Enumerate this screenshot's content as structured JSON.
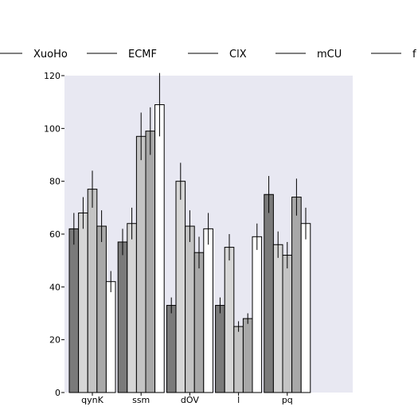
{
  "chart_data": {
    "type": "bar",
    "categories": [
      "qynK",
      "ssm",
      "dOV",
      "l",
      "pq"
    ],
    "series": [
      {
        "name": "XuoHo",
        "values": [
          62,
          57,
          33,
          33,
          75
        ],
        "errors": [
          6,
          5,
          3,
          3,
          7
        ],
        "color": "#7a7a7a"
      },
      {
        "name": "ECMF",
        "values": [
          68,
          64,
          80,
          55,
          56
        ],
        "errors": [
          6,
          6,
          7,
          5,
          5
        ],
        "color": "#d6d6d6"
      },
      {
        "name": "ClX",
        "values": [
          77,
          97,
          63,
          25,
          52
        ],
        "errors": [
          7,
          9,
          6,
          2,
          5
        ],
        "color": "#c4c4c4"
      },
      {
        "name": "mCU",
        "values": [
          63,
          99,
          53,
          28,
          74
        ],
        "errors": [
          6,
          9,
          6,
          2,
          7
        ],
        "color": "#a8a8a8"
      },
      {
        "name": "f",
        "values": [
          42,
          109,
          62,
          59,
          64
        ],
        "errors": [
          4,
          12,
          6,
          5,
          6
        ],
        "color": "#ffffff"
      }
    ],
    "ylim": [
      0,
      120
    ],
    "yticks": [
      0,
      20,
      40,
      60,
      80,
      100,
      120
    ],
    "grid": false,
    "legend": "top",
    "plot_background": "#e8e8f2"
  }
}
